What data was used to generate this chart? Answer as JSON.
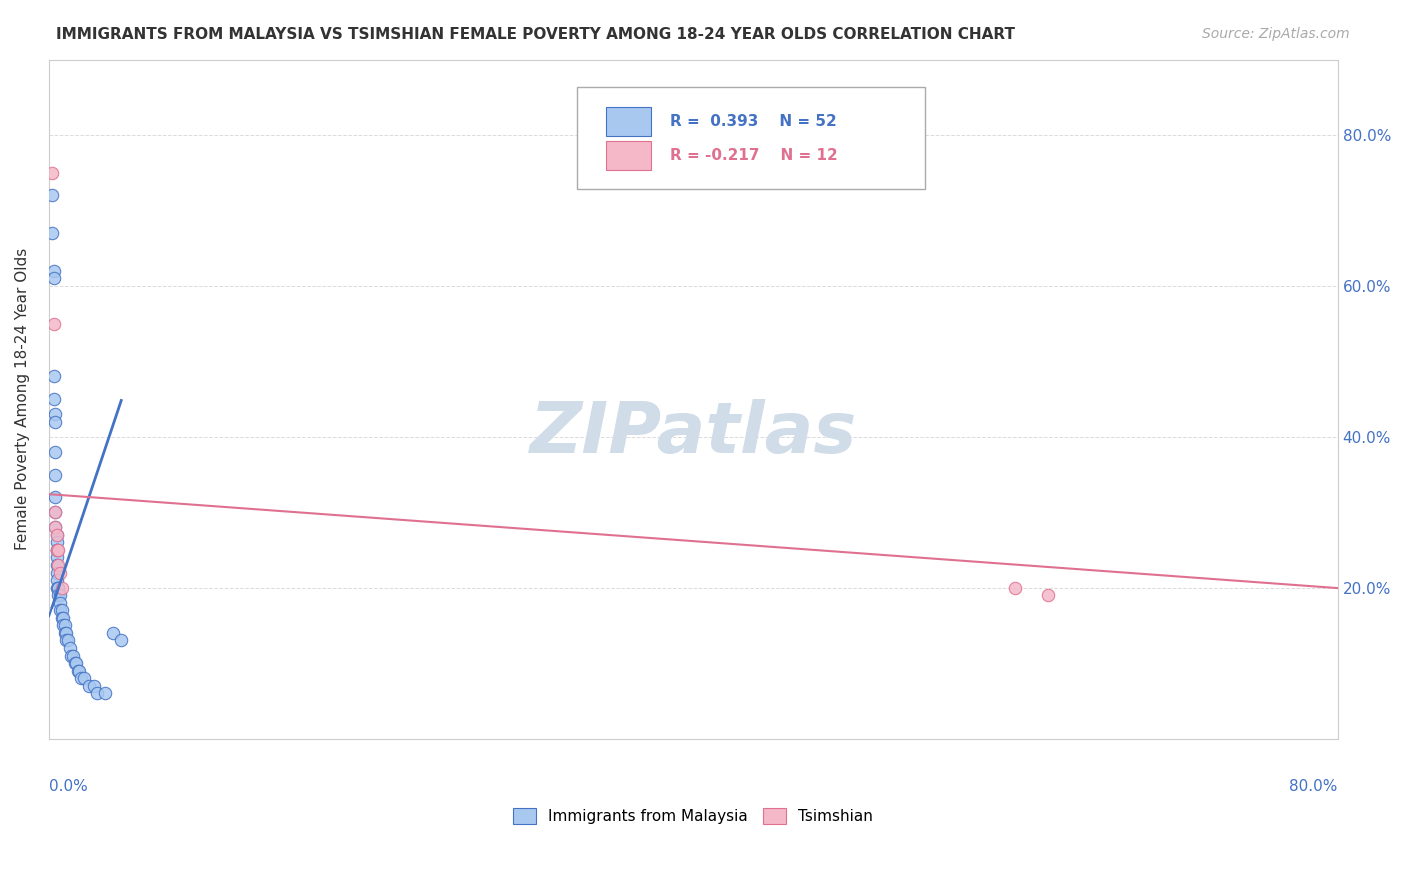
{
  "title": "IMMIGRANTS FROM MALAYSIA VS TSIMSHIAN FEMALE POVERTY AMONG 18-24 YEAR OLDS CORRELATION CHART",
  "source": "Source: ZipAtlas.com",
  "ylabel": "Female Poverty Among 18-24 Year Olds",
  "legend_blue_label": "Immigrants from Malaysia",
  "legend_pink_label": "Tsimshian",
  "legend_blue_r": "R =  0.393",
  "legend_blue_n": "N = 52",
  "legend_pink_r": "R = -0.217",
  "legend_pink_n": "N = 12",
  "blue_color": "#a8c8f0",
  "blue_line_color": "#4472c4",
  "pink_color": "#f4b8c8",
  "pink_line_color": "#e07090",
  "watermark_color": "#d0dce8",
  "background_color": "#ffffff",
  "xlim": [
    0.0,
    0.8
  ],
  "ylim": [
    0.0,
    0.9
  ],
  "bx": [
    0.002,
    0.002,
    0.003,
    0.003,
    0.003,
    0.003,
    0.004,
    0.004,
    0.004,
    0.004,
    0.004,
    0.004,
    0.004,
    0.005,
    0.005,
    0.005,
    0.005,
    0.005,
    0.005,
    0.005,
    0.005,
    0.005,
    0.006,
    0.006,
    0.006,
    0.007,
    0.007,
    0.007,
    0.008,
    0.008,
    0.009,
    0.009,
    0.01,
    0.01,
    0.011,
    0.011,
    0.012,
    0.013,
    0.014,
    0.015,
    0.016,
    0.017,
    0.018,
    0.019,
    0.02,
    0.022,
    0.025,
    0.028,
    0.03,
    0.035,
    0.04,
    0.045
  ],
  "by": [
    0.72,
    0.67,
    0.62,
    0.61,
    0.48,
    0.45,
    0.43,
    0.42,
    0.38,
    0.35,
    0.32,
    0.3,
    0.28,
    0.27,
    0.26,
    0.25,
    0.25,
    0.24,
    0.23,
    0.22,
    0.21,
    0.2,
    0.2,
    0.2,
    0.19,
    0.19,
    0.18,
    0.17,
    0.17,
    0.16,
    0.16,
    0.15,
    0.15,
    0.14,
    0.14,
    0.13,
    0.13,
    0.12,
    0.11,
    0.11,
    0.1,
    0.1,
    0.09,
    0.09,
    0.08,
    0.08,
    0.07,
    0.07,
    0.06,
    0.06,
    0.14,
    0.13
  ],
  "px": [
    0.002,
    0.003,
    0.004,
    0.004,
    0.005,
    0.005,
    0.006,
    0.006,
    0.007,
    0.008,
    0.6,
    0.62
  ],
  "py": [
    0.75,
    0.55,
    0.3,
    0.28,
    0.27,
    0.25,
    0.25,
    0.23,
    0.22,
    0.2,
    0.2,
    0.19
  ]
}
